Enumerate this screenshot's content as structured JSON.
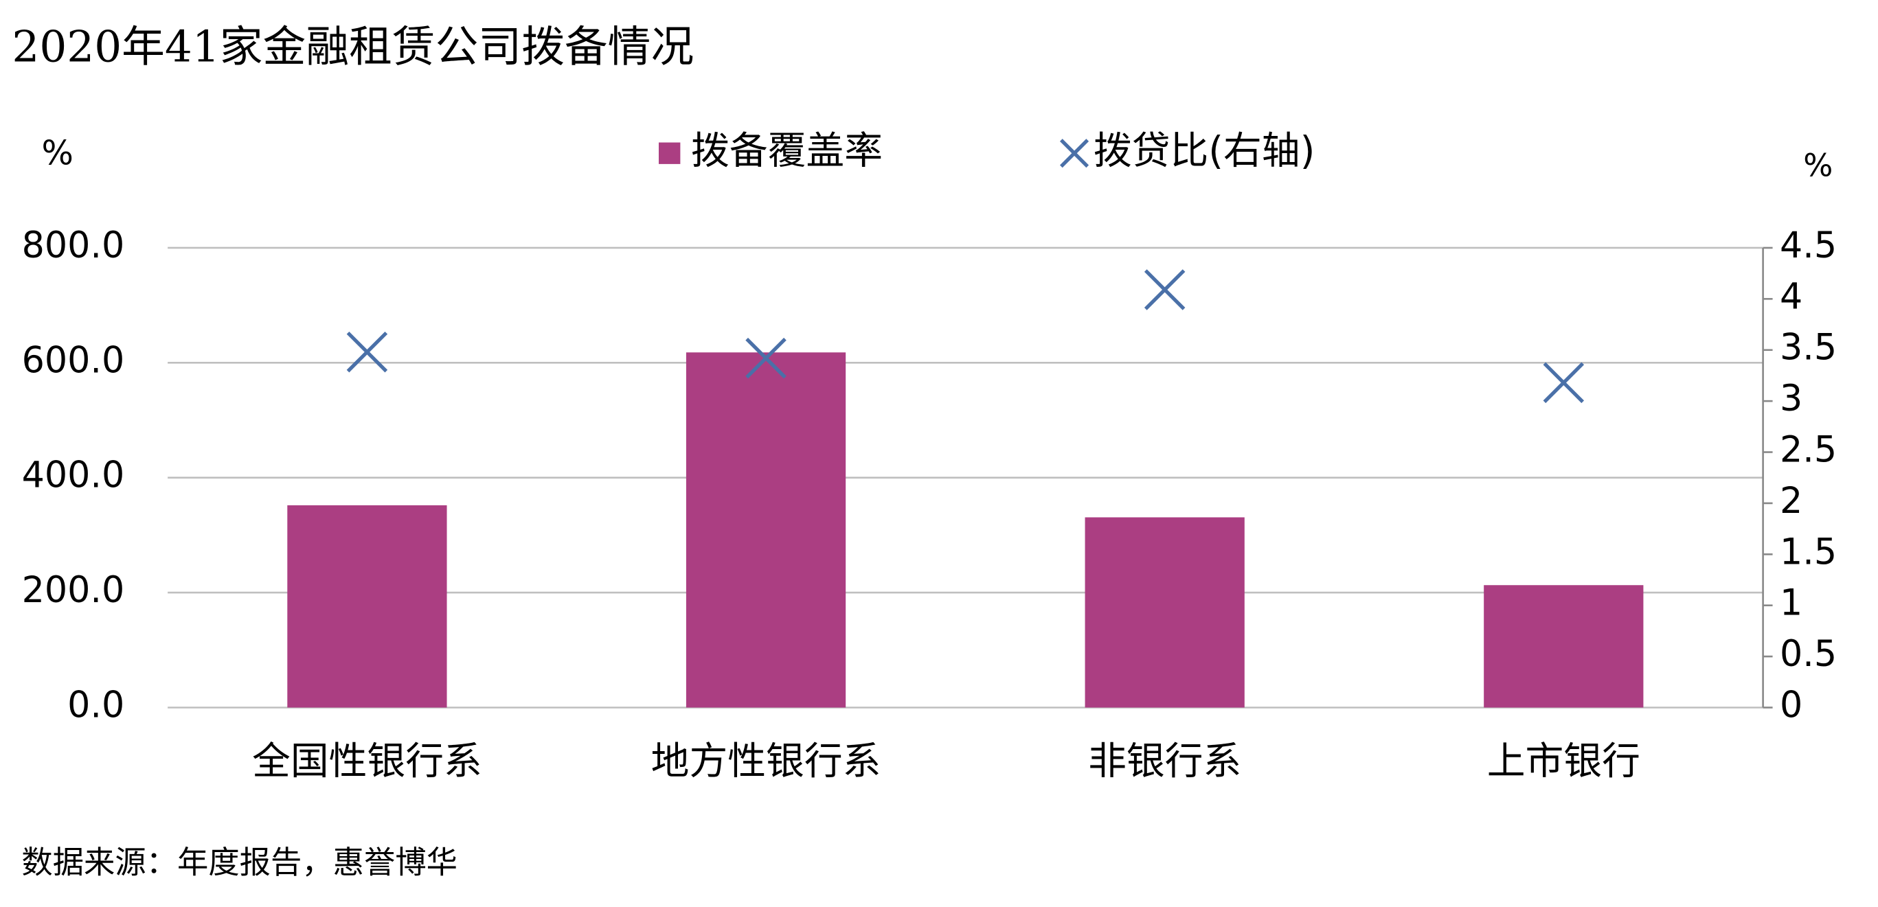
{
  "chart_data": {
    "type": "bar",
    "title": "2020年41家金融租赁公司拨备情况",
    "y_unit": "%",
    "y2_unit": "%",
    "categories": [
      "全国性银行系",
      "地方性银行系",
      "非银行系",
      "上市银行"
    ],
    "series": [
      {
        "name": "拨备覆盖率",
        "type": "bar",
        "color": "#ab3e82",
        "values": [
          352,
          618,
          331,
          213
        ]
      },
      {
        "name": "拨贷比(右轴)",
        "type": "scatter",
        "marker": "x",
        "axis": "y2",
        "color": "#4a70a8",
        "values": [
          3.48,
          3.42,
          4.09,
          3.18
        ]
      }
    ],
    "ylim": [
      0,
      800
    ],
    "yticks": [
      {
        "value": 0,
        "label": "0.0"
      },
      {
        "value": 200,
        "label": "200.0"
      },
      {
        "value": 400,
        "label": "400.0"
      },
      {
        "value": 600,
        "label": "600.0"
      },
      {
        "value": 800,
        "label": "800.0"
      }
    ],
    "y2lim": [
      0,
      4.5
    ],
    "y2ticks": [
      0,
      0.5,
      1,
      1.5,
      2,
      2.5,
      3,
      3.5,
      4,
      4.5
    ],
    "grid": true,
    "legend": "top",
    "source": "数据来源：年度报告，惠誉博华"
  }
}
